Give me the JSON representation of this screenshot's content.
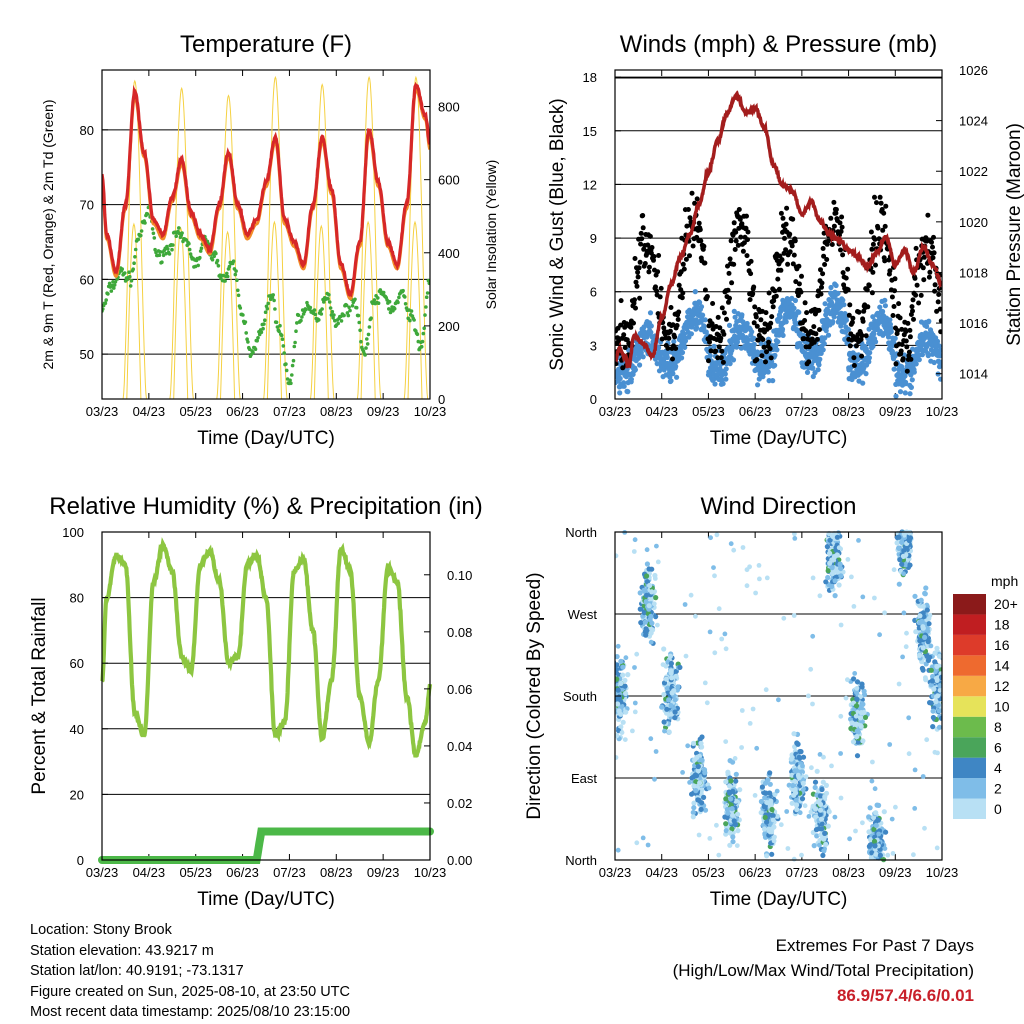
{
  "x_ticks": [
    "03/23",
    "04/23",
    "05/23",
    "06/23",
    "07/23",
    "08/23",
    "09/23",
    "10/23"
  ],
  "x_label": "Time (Day/UTC)",
  "chart_data": [
    {
      "type": "line",
      "title": "Temperature (F)",
      "xlabel": "Time (Day/UTC)",
      "ylabel": "2m & 9m T (Red, Orange) & 2m Td (Green)",
      "y2label": "Solar Insolation (Yellow)",
      "ylim": [
        44,
        88
      ],
      "y2lim": [
        0,
        900
      ],
      "yticks": [
        50,
        60,
        70,
        80
      ],
      "y2ticks": [
        0,
        200,
        400,
        600,
        800
      ],
      "colors": {
        "temp_2m": "#d62728",
        "temp_9m": "#f28c28",
        "dewpoint": "#3ea83a",
        "insolation": "#f5d142"
      },
      "series": [
        {
          "name": "2m T",
          "x": [
            0,
            0.1,
            0.3,
            0.5,
            0.7,
            0.9,
            1.1,
            1.3,
            1.5,
            1.7,
            1.9,
            2.1,
            2.3,
            2.5,
            2.7,
            2.9,
            3.1,
            3.3,
            3.5,
            3.7,
            3.9,
            4.1,
            4.3,
            4.5,
            4.7,
            4.9,
            5.1,
            5.3,
            5.5,
            5.7,
            5.9,
            6.1,
            6.3,
            6.5,
            6.7,
            6.9,
            7.0
          ],
          "values": [
            74,
            66,
            61,
            70,
            85,
            77,
            68,
            66,
            71,
            76,
            69,
            66,
            64,
            70,
            77,
            70,
            66,
            68,
            73,
            79,
            68,
            65,
            62,
            70,
            79,
            72,
            62,
            58,
            65,
            80,
            73,
            65,
            62,
            70,
            86,
            82,
            78
          ]
        },
        {
          "name": "2m Td",
          "x": [
            0,
            0.2,
            0.4,
            0.6,
            0.8,
            1.0,
            1.2,
            1.4,
            1.6,
            1.8,
            2.0,
            2.2,
            2.4,
            2.6,
            2.8,
            3.0,
            3.2,
            3.4,
            3.6,
            3.8,
            4.0,
            4.2,
            4.4,
            4.6,
            4.8,
            5.0,
            5.2,
            5.4,
            5.6,
            5.8,
            6.0,
            6.2,
            6.4,
            6.6,
            6.8,
            7.0
          ],
          "values": [
            56,
            59,
            61,
            60,
            66,
            69,
            63,
            64,
            66,
            65,
            62,
            65,
            63,
            60,
            62,
            55,
            50,
            53,
            58,
            53,
            46,
            55,
            56,
            55,
            58,
            54,
            56,
            57,
            50,
            57,
            58,
            56,
            58,
            55,
            51,
            60
          ]
        },
        {
          "name": "Solar Insolation",
          "peaks": [
            870,
            850,
            830,
            880,
            860,
            880,
            880
          ]
        }
      ]
    },
    {
      "type": "scatter",
      "title": "Winds (mph) & Pressure (mb)",
      "xlabel": "Time (Day/UTC)",
      "ylabel": "Sonic Wind & Gust (Blue, Black)",
      "y2label": "Station Pressure (Maroon)",
      "ylim": [
        0,
        18.4
      ],
      "y2lim": [
        1013,
        1026
      ],
      "yticks": [
        0,
        3,
        6,
        9,
        12,
        15,
        18
      ],
      "y2ticks": [
        1014,
        1016,
        1018,
        1020,
        1022,
        1024,
        1026
      ],
      "colors": {
        "wind": "#4a90d2",
        "gust": "#000000",
        "pressure": "#a31d1d"
      },
      "series": [
        {
          "name": "Station Pressure",
          "x": [
            0,
            0.1,
            0.2,
            0.3,
            0.4,
            0.6,
            0.8,
            1.0,
            1.2,
            1.4,
            1.6,
            1.8,
            2.0,
            2.2,
            2.4,
            2.6,
            2.8,
            3.0,
            3.2,
            3.4,
            3.6,
            3.8,
            4.0,
            4.2,
            4.4,
            4.6,
            4.8,
            5.0,
            5.2,
            5.4,
            5.6,
            5.8,
            6.0,
            6.2,
            6.4,
            6.6,
            6.8,
            7.0
          ],
          "values": [
            1014.5,
            1015.0,
            1014.7,
            1014.3,
            1015.5,
            1015.2,
            1014.7,
            1016.2,
            1017.5,
            1018.6,
            1019.5,
            1020.7,
            1022.0,
            1023.2,
            1024.3,
            1025.0,
            1024.3,
            1024.5,
            1023.7,
            1022.2,
            1021.4,
            1021.2,
            1020.3,
            1020.8,
            1020.0,
            1019.5,
            1019.3,
            1018.9,
            1018.6,
            1018.2,
            1018.8,
            1019.4,
            1018.3,
            1018.9,
            1018.0,
            1019.0,
            1018.3,
            1017.5
          ]
        },
        {
          "name": "Sonic Wind",
          "mean": [
            2.5,
            3.5,
            2.8,
            3.6,
            3.9,
            3.2,
            2.5
          ]
        },
        {
          "name": "Gust",
          "mean": [
            6.0,
            6.9,
            6.4,
            6.4,
            7.1,
            6.8,
            5.9
          ]
        }
      ]
    },
    {
      "type": "line",
      "title": "Relative Humidity (%) & Precipitation (in)",
      "xlabel": "Time (Day/UTC)",
      "ylabel": "Percent & Total Rainfall",
      "ylim": [
        0,
        100
      ],
      "y2lim": [
        0,
        0.115
      ],
      "yticks": [
        0,
        20,
        40,
        60,
        80,
        100
      ],
      "y2ticks": [
        0.0,
        0.02,
        0.04,
        0.06,
        0.08,
        0.1
      ],
      "colors": {
        "rh": "#8dc641",
        "precip": "#4cb848"
      },
      "series": [
        {
          "name": "Relative Humidity",
          "x": [
            0,
            0.1,
            0.3,
            0.5,
            0.7,
            0.9,
            1.1,
            1.3,
            1.5,
            1.7,
            1.9,
            2.1,
            2.3,
            2.5,
            2.7,
            2.9,
            3.1,
            3.3,
            3.5,
            3.7,
            3.9,
            4.1,
            4.3,
            4.5,
            4.7,
            4.9,
            5.1,
            5.3,
            5.5,
            5.7,
            5.9,
            6.1,
            6.3,
            6.5,
            6.7,
            6.9,
            7.0
          ],
          "values": [
            55,
            80,
            93,
            90,
            45,
            38,
            85,
            96,
            88,
            62,
            58,
            90,
            94,
            85,
            60,
            62,
            90,
            93,
            80,
            38,
            42,
            88,
            92,
            70,
            37,
            55,
            95,
            88,
            50,
            36,
            55,
            89,
            85,
            50,
            32,
            42,
            53
          ]
        },
        {
          "name": "Total Precipitation",
          "x": [
            0,
            3.3,
            3.4,
            7.0
          ],
          "values": [
            0,
            0,
            0.01,
            0.01
          ]
        }
      ]
    },
    {
      "type": "scatter",
      "title": "Wind Direction",
      "xlabel": "Time (Day/UTC)",
      "ylabel": "Direction (Colored By Speed)",
      "ylim": [
        0,
        360
      ],
      "yticks": [
        "North",
        "East",
        "South",
        "West",
        "North"
      ],
      "colorbar": {
        "title": "mph",
        "labels": [
          "0",
          "2",
          "4",
          "6",
          "8",
          "10",
          "12",
          "14",
          "16",
          "18",
          "20+"
        ],
        "colors": [
          "#b8e0f4",
          "#7fbde8",
          "#3f86c4",
          "#4aa55a",
          "#6cbb4c",
          "#e6e35a",
          "#f7a945",
          "#ee6a2f",
          "#dd3b2a",
          "#c01e21",
          "#8b1a1a"
        ]
      },
      "clusters": [
        {
          "day": 0.1,
          "dir": 180
        },
        {
          "day": 0.7,
          "dir": 280
        },
        {
          "day": 1.2,
          "dir": 180
        },
        {
          "day": 1.8,
          "dir": 90
        },
        {
          "day": 2.5,
          "dir": 60
        },
        {
          "day": 3.3,
          "dir": 50
        },
        {
          "day": 3.9,
          "dir": 90
        },
        {
          "day": 4.4,
          "dir": 50
        },
        {
          "day": 4.7,
          "dir": 330
        },
        {
          "day": 5.2,
          "dir": 160
        },
        {
          "day": 5.6,
          "dir": 20
        },
        {
          "day": 6.2,
          "dir": 350
        },
        {
          "day": 6.6,
          "dir": 250
        },
        {
          "day": 6.9,
          "dir": 190
        }
      ]
    }
  ],
  "info": {
    "location": "Location: Stony Brook",
    "elevation": "Station elevation: 43.9217 m",
    "latlon": "Station lat/lon: 40.9191; -73.1317",
    "created": "Figure created on Sun, 2025-08-10, at 23:50 UTC",
    "latest": "Most recent data timestamp: 2025/08/10 23:15:00"
  },
  "extremes": {
    "title": "Extremes For Past 7 Days",
    "subtitle": "(High/Low/Max Wind/Total Precipitation)",
    "values": "86.9/57.4/6.6/0.01",
    "color": "#c8202a"
  }
}
